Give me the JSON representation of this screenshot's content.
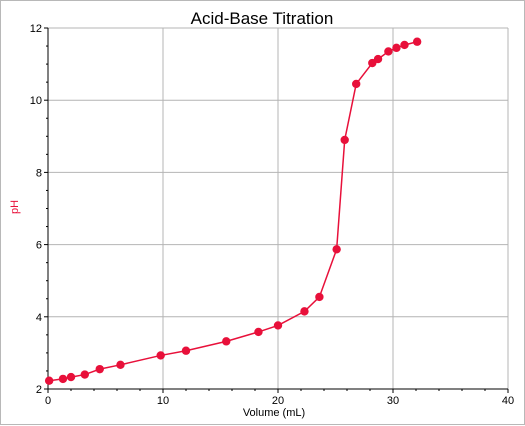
{
  "chart_data": {
    "type": "line",
    "title": "Acid-Base Titration",
    "xlabel": "Volume (mL)",
    "ylabel": "pH",
    "xlim": [
      0,
      40
    ],
    "ylim": [
      2,
      12
    ],
    "x_ticks": [
      0,
      10,
      20,
      30,
      40
    ],
    "y_ticks": [
      2,
      4,
      6,
      8,
      10,
      12
    ],
    "grid": true,
    "legend": "none",
    "colors": {
      "series": "#e8103a",
      "ylabel": "#e8103a",
      "grid": "#b4b4b4",
      "axis": "#000000"
    },
    "series": [
      {
        "x": [
          0.1,
          1.3,
          2.0,
          3.2,
          4.5,
          6.3,
          9.8,
          12.0,
          15.5,
          18.3,
          20.0,
          22.3,
          23.6,
          25.1,
          25.8,
          26.8,
          28.2,
          28.7,
          29.6,
          30.3,
          31.0,
          32.1
        ],
        "y": [
          2.23,
          2.28,
          2.33,
          2.4,
          2.55,
          2.67,
          2.93,
          3.06,
          3.32,
          3.58,
          3.76,
          4.15,
          4.55,
          5.87,
          8.9,
          10.45,
          11.03,
          11.14,
          11.35,
          11.45,
          11.53,
          11.62
        ]
      }
    ]
  }
}
